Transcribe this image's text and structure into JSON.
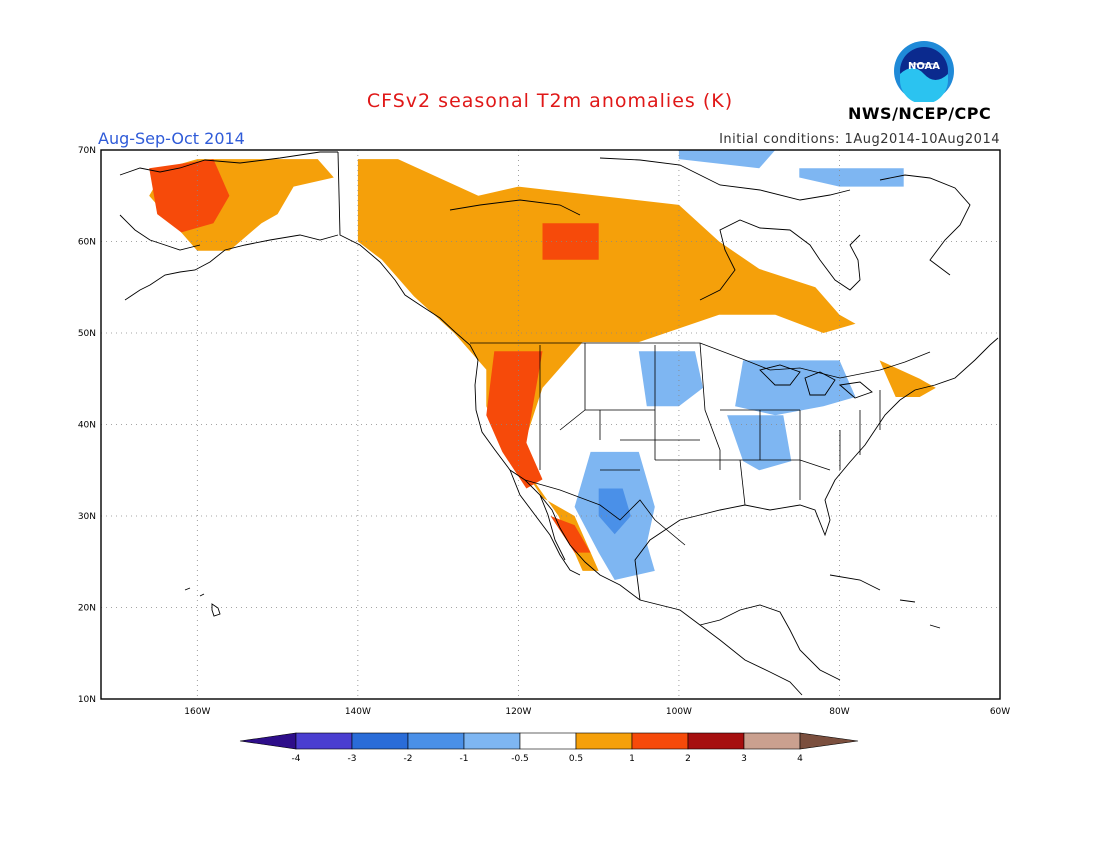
{
  "title": "CFSv2 seasonal T2m anomalies (K)",
  "season": "Aug-Sep-Oct 2014",
  "initial_conditions": "Initial conditions: 1Aug2014-10Aug2014",
  "organization": "NWS/NCEP/CPC",
  "logo_text": "NOAA",
  "axes": {
    "lat_labels": [
      "70N",
      "60N",
      "50N",
      "40N",
      "30N",
      "20N",
      "10N"
    ],
    "lon_labels": [
      "160W",
      "140W",
      "120W",
      "100W",
      "80W",
      "60W"
    ]
  },
  "colorbar": {
    "labels": [
      "-4",
      "-3",
      "-2",
      "-1",
      "-0.5",
      "0.5",
      "1",
      "2",
      "3",
      "4"
    ],
    "colors": [
      "#2e0e8a",
      "#4a3ed0",
      "#2a6cd8",
      "#4a90e8",
      "#7eb6f2",
      "#ffffff",
      "#f5a00a",
      "#f64a0a",
      "#a60f0f",
      "#caa08f",
      "#7b4f3e"
    ]
  },
  "map_data": {
    "extent": {
      "lon": [
        -172,
        -60
      ],
      "lat": [
        10,
        70
      ]
    },
    "warm_05_1": [
      [
        [
          -160,
          69
        ],
        [
          -150,
          69
        ],
        [
          -145,
          69
        ],
        [
          -143,
          67
        ],
        [
          -148,
          66
        ],
        [
          -150,
          63
        ],
        [
          -152,
          62
        ],
        [
          -156,
          59
        ],
        [
          -160,
          59
        ],
        [
          -163,
          62
        ],
        [
          -166,
          65
        ],
        [
          -164,
          68
        ]
      ],
      [
        [
          -140,
          69
        ],
        [
          -135,
          69
        ],
        [
          -125,
          65
        ],
        [
          -120,
          66
        ],
        [
          -110,
          65
        ],
        [
          -100,
          64
        ],
        [
          -95,
          60
        ],
        [
          -90,
          57
        ],
        [
          -83,
          55
        ],
        [
          -80,
          52
        ],
        [
          -78,
          51
        ],
        [
          -82,
          50
        ],
        [
          -88,
          52
        ],
        [
          -95,
          52
        ],
        [
          -105,
          49
        ],
        [
          -112,
          49
        ],
        [
          -117,
          44
        ],
        [
          -120,
          36
        ],
        [
          -117,
          32
        ],
        [
          -113,
          30
        ],
        [
          -110,
          24
        ],
        [
          -112,
          24
        ],
        [
          -115,
          30
        ],
        [
          -119,
          35
        ],
        [
          -122,
          38
        ],
        [
          -124,
          42
        ],
        [
          -124,
          46
        ],
        [
          -128,
          50
        ],
        [
          -133,
          54
        ],
        [
          -137,
          58
        ],
        [
          -140,
          60
        ]
      ],
      [
        [
          -75,
          47
        ],
        [
          -70,
          45
        ],
        [
          -68,
          44
        ],
        [
          -70,
          43
        ],
        [
          -73,
          43
        ]
      ]
    ],
    "warm_1_2": [
      [
        [
          -166,
          68
        ],
        [
          -158,
          69
        ],
        [
          -156,
          65
        ],
        [
          -158,
          62
        ],
        [
          -162,
          61
        ],
        [
          -165,
          63
        ]
      ],
      [
        [
          -117,
          62
        ],
        [
          -110,
          62
        ],
        [
          -110,
          58
        ],
        [
          -117,
          58
        ]
      ],
      [
        [
          -123,
          48
        ],
        [
          -117,
          48
        ],
        [
          -118,
          43
        ],
        [
          -119,
          38
        ],
        [
          -117,
          34
        ],
        [
          -119,
          33
        ],
        [
          -122,
          37
        ],
        [
          -124,
          41
        ]
      ],
      [
        [
          -116,
          30
        ],
        [
          -113,
          29
        ],
        [
          -111,
          26
        ],
        [
          -113,
          26
        ]
      ]
    ],
    "cool_m05_m1": [
      [
        [
          -111,
          37
        ],
        [
          -105,
          37
        ],
        [
          -103,
          31
        ],
        [
          -104,
          27
        ],
        [
          -103,
          24
        ],
        [
          -108,
          23
        ],
        [
          -110,
          26
        ],
        [
          -113,
          31
        ]
      ],
      [
        [
          -105,
          48
        ],
        [
          -98,
          48
        ],
        [
          -97,
          44
        ],
        [
          -100,
          42
        ],
        [
          -104,
          42
        ]
      ],
      [
        [
          -92,
          47
        ],
        [
          -80,
          47
        ],
        [
          -78,
          43
        ],
        [
          -82,
          42
        ],
        [
          -88,
          41
        ],
        [
          -93,
          42
        ]
      ],
      [
        [
          -94,
          41
        ],
        [
          -87,
          41
        ],
        [
          -86,
          36
        ],
        [
          -90,
          35
        ],
        [
          -92,
          36
        ]
      ],
      [
        [
          -85,
          68
        ],
        [
          -72,
          68
        ],
        [
          -72,
          66
        ],
        [
          -80,
          66
        ],
        [
          -85,
          67
        ]
      ],
      [
        [
          -100,
          70
        ],
        [
          -88,
          70
        ],
        [
          -90,
          68
        ],
        [
          -100,
          69
        ]
      ]
    ],
    "cool_m1_m2": [
      [
        [
          -110,
          33
        ],
        [
          -107,
          33
        ],
        [
          -106,
          30
        ],
        [
          -108,
          28
        ],
        [
          -110,
          30
        ]
      ]
    ]
  }
}
